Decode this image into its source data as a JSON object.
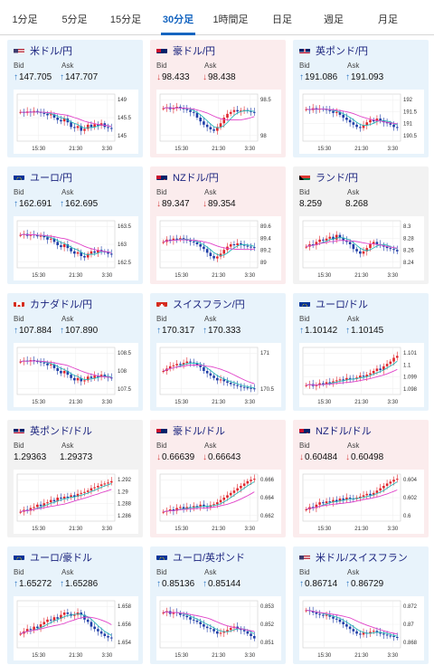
{
  "tabs": [
    {
      "label": "1分足"
    },
    {
      "label": "5分足"
    },
    {
      "label": "15分足"
    },
    {
      "label": "30分足"
    },
    {
      "label": "1時間足"
    },
    {
      "label": "日足"
    },
    {
      "label": "週足"
    },
    {
      "label": "月足"
    }
  ],
  "active_tab": 3,
  "colors": {
    "up": "#e8f3fb",
    "down": "#fbeced",
    "neutral": "#f2f2f2",
    "candle_up": "#e0262d",
    "candle_down": "#1f3ea8",
    "ma_pink": "#e040c8",
    "ma_teal": "#2ab7b7",
    "arrow_up": "#2f78c4",
    "arrow_down": "#d64545"
  },
  "labels": {
    "bid": "Bid",
    "ask": "Ask"
  },
  "cards": [
    {
      "title": "米ドル/円",
      "flag": "us",
      "dir": "up",
      "bid": "147.705",
      "ask": "147.707",
      "yticks": [
        "149",
        "145.5",
        "145"
      ],
      "xticks": [
        "15:30",
        "21:30",
        "3:30"
      ],
      "ohlc": [
        0.62,
        0.6,
        0.63,
        0.61,
        0.64,
        0.62,
        0.6,
        0.58,
        0.55,
        0.57,
        0.5,
        0.45,
        0.42,
        0.48,
        0.4,
        0.3,
        0.28,
        0.32,
        0.22,
        0.26,
        0.35,
        0.3,
        0.36,
        0.33,
        0.38,
        0.3,
        0.28,
        0.26
      ]
    },
    {
      "title": "豪ドル/円",
      "flag": "au",
      "dir": "down",
      "bid": "98.433",
      "ask": "98.438",
      "yticks": [
        "98.5",
        "98"
      ],
      "xticks": [
        "15:30",
        "21:30",
        "3:30"
      ],
      "ohlc": [
        0.7,
        0.72,
        0.68,
        0.71,
        0.73,
        0.7,
        0.68,
        0.66,
        0.62,
        0.6,
        0.5,
        0.42,
        0.35,
        0.3,
        0.25,
        0.22,
        0.3,
        0.38,
        0.5,
        0.58,
        0.62,
        0.66,
        0.63,
        0.65,
        0.66,
        0.64,
        0.62,
        0.6
      ]
    },
    {
      "title": "英ポンド/円",
      "flag": "uk",
      "dir": "up",
      "bid": "191.086",
      "ask": "191.093",
      "yticks": [
        "192",
        "191.5",
        "191",
        "190.5"
      ],
      "xticks": [
        "15:30",
        "21:30",
        "3:30"
      ],
      "ohlc": [
        0.68,
        0.66,
        0.7,
        0.67,
        0.69,
        0.68,
        0.66,
        0.64,
        0.6,
        0.62,
        0.56,
        0.5,
        0.45,
        0.4,
        0.35,
        0.3,
        0.28,
        0.34,
        0.4,
        0.45,
        0.42,
        0.48,
        0.44,
        0.4,
        0.38,
        0.35,
        0.3,
        0.28
      ]
    },
    {
      "title": "ユーロ/円",
      "flag": "eu",
      "dir": "up",
      "bid": "162.691",
      "ask": "162.695",
      "yticks": [
        "163.5",
        "163",
        "162.5"
      ],
      "xticks": [
        "15:30",
        "21:30",
        "3:30"
      ],
      "ohlc": [
        0.7,
        0.72,
        0.68,
        0.71,
        0.7,
        0.67,
        0.68,
        0.65,
        0.6,
        0.62,
        0.55,
        0.48,
        0.44,
        0.5,
        0.42,
        0.35,
        0.3,
        0.33,
        0.25,
        0.22,
        0.3,
        0.35,
        0.32,
        0.38,
        0.35,
        0.33,
        0.3,
        0.28
      ]
    },
    {
      "title": "NZドル/円",
      "flag": "nz",
      "dir": "down",
      "bid": "89.347",
      "ask": "89.354",
      "yticks": [
        "89.6",
        "89.4",
        "89.2",
        "89"
      ],
      "xticks": [
        "15:30",
        "21:30",
        "3:30"
      ],
      "ohlc": [
        0.55,
        0.6,
        0.58,
        0.62,
        0.6,
        0.63,
        0.6,
        0.58,
        0.56,
        0.54,
        0.5,
        0.45,
        0.4,
        0.32,
        0.25,
        0.2,
        0.24,
        0.3,
        0.38,
        0.45,
        0.5,
        0.48,
        0.52,
        0.5,
        0.47,
        0.45,
        0.44,
        0.42
      ]
    },
    {
      "title": "ランド/円",
      "flag": "za",
      "dir": "neutral",
      "bid": "8.259",
      "ask": "8.268",
      "yticks": [
        "8.3",
        "8.28",
        "8.26",
        "8.24"
      ],
      "xticks": [
        "15:30",
        "21:30",
        "3:30"
      ],
      "ohlc": [
        0.45,
        0.5,
        0.48,
        0.55,
        0.6,
        0.58,
        0.62,
        0.66,
        0.6,
        0.7,
        0.64,
        0.58,
        0.55,
        0.5,
        0.4,
        0.35,
        0.3,
        0.35,
        0.42,
        0.5,
        0.55,
        0.5,
        0.48,
        0.45,
        0.42,
        0.4,
        0.38,
        0.35
      ]
    },
    {
      "title": "カナダドル/円",
      "flag": "ca",
      "dir": "up",
      "bid": "107.884",
      "ask": "107.890",
      "yticks": [
        "108.5",
        "108",
        "107.5"
      ],
      "xticks": [
        "15:30",
        "21:30",
        "3:30"
      ],
      "ohlc": [
        0.7,
        0.72,
        0.7,
        0.73,
        0.71,
        0.7,
        0.68,
        0.66,
        0.62,
        0.64,
        0.56,
        0.5,
        0.45,
        0.5,
        0.42,
        0.35,
        0.3,
        0.35,
        0.28,
        0.3,
        0.38,
        0.35,
        0.4,
        0.37,
        0.42,
        0.38,
        0.36,
        0.35
      ]
    },
    {
      "title": "スイスフラン/円",
      "flag": "ch",
      "dir": "up",
      "bid": "170.317",
      "ask": "170.333",
      "yticks": [
        "171",
        "170.5"
      ],
      "xticks": [
        "15:30",
        "21:30",
        "3:30"
      ],
      "ohlc": [
        0.5,
        0.55,
        0.6,
        0.62,
        0.65,
        0.63,
        0.67,
        0.7,
        0.68,
        0.66,
        0.62,
        0.58,
        0.5,
        0.45,
        0.4,
        0.35,
        0.3,
        0.32,
        0.28,
        0.25,
        0.22,
        0.2,
        0.18,
        0.16,
        0.15,
        0.14,
        0.13,
        0.12
      ]
    },
    {
      "title": "ユーロ/ドル",
      "flag": "eu-us",
      "dir": "up",
      "bid": "1.10142",
      "ask": "1.10145",
      "yticks": [
        "1.101",
        "1.1",
        "1.099",
        "1.098"
      ],
      "xticks": [
        "15:30",
        "21:30",
        "3:30"
      ],
      "ohlc": [
        0.2,
        0.22,
        0.18,
        0.2,
        0.24,
        0.22,
        0.26,
        0.25,
        0.28,
        0.3,
        0.32,
        0.3,
        0.35,
        0.34,
        0.33,
        0.36,
        0.4,
        0.38,
        0.42,
        0.45,
        0.5,
        0.55,
        0.52,
        0.6,
        0.65,
        0.7,
        0.78,
        0.82
      ]
    },
    {
      "title": "英ポンド/ドル",
      "flag": "uk-us",
      "dir": "neutral",
      "bid": "1.29363",
      "ask": "1.29373",
      "yticks": [
        "1.292",
        "1.29",
        "1.288",
        "1.286"
      ],
      "xticks": [
        "15:30",
        "21:30",
        "3:30"
      ],
      "ohlc": [
        0.2,
        0.24,
        0.22,
        0.28,
        0.3,
        0.35,
        0.32,
        0.38,
        0.4,
        0.45,
        0.42,
        0.5,
        0.48,
        0.52,
        0.5,
        0.55,
        0.52,
        0.58,
        0.6,
        0.62,
        0.65,
        0.7,
        0.72,
        0.75,
        0.78,
        0.8,
        0.82,
        0.85
      ]
    },
    {
      "title": "豪ドル/ドル",
      "flag": "au-us",
      "dir": "down",
      "bid": "0.66639",
      "ask": "0.66643",
      "yticks": [
        "0.666",
        "0.664",
        "0.662"
      ],
      "xticks": [
        "15:30",
        "21:30",
        "3:30"
      ],
      "ohlc": [
        0.2,
        0.22,
        0.25,
        0.22,
        0.28,
        0.3,
        0.26,
        0.3,
        0.28,
        0.32,
        0.3,
        0.35,
        0.32,
        0.3,
        0.34,
        0.36,
        0.4,
        0.45,
        0.5,
        0.55,
        0.6,
        0.65,
        0.7,
        0.75,
        0.8,
        0.85,
        0.88,
        0.9
      ]
    },
    {
      "title": "NZドル/ドル",
      "flag": "nz-us",
      "dir": "down",
      "bid": "0.60484",
      "ask": "0.60498",
      "yticks": [
        "0.604",
        "0.602",
        "0.6"
      ],
      "xticks": [
        "15:30",
        "21:30",
        "3:30"
      ],
      "ohlc": [
        0.25,
        0.3,
        0.28,
        0.35,
        0.4,
        0.38,
        0.42,
        0.4,
        0.45,
        0.42,
        0.48,
        0.45,
        0.5,
        0.48,
        0.47,
        0.5,
        0.52,
        0.55,
        0.58,
        0.55,
        0.6,
        0.65,
        0.7,
        0.75,
        0.8,
        0.84,
        0.88,
        0.9
      ]
    },
    {
      "title": "ユーロ/豪ドル",
      "flag": "eu-au",
      "dir": "up",
      "bid": "1.65272",
      "ask": "1.65286",
      "yticks": [
        "1.658",
        "1.656",
        "1.654"
      ],
      "xticks": [
        "15:30",
        "21:30",
        "3:30"
      ],
      "ohlc": [
        0.3,
        0.35,
        0.4,
        0.38,
        0.45,
        0.42,
        0.5,
        0.55,
        0.6,
        0.58,
        0.65,
        0.62,
        0.7,
        0.75,
        0.72,
        0.68,
        0.7,
        0.75,
        0.7,
        0.6,
        0.55,
        0.45,
        0.4,
        0.35,
        0.3,
        0.25,
        0.22,
        0.2
      ]
    },
    {
      "title": "ユーロ/英ポンド",
      "flag": "eu-uk",
      "dir": "up",
      "bid": "0.85136",
      "ask": "0.85144",
      "yticks": [
        "0.853",
        "0.852",
        "0.851"
      ],
      "xticks": [
        "15:30",
        "21:30",
        "3:30"
      ],
      "ohlc": [
        0.75,
        0.78,
        0.72,
        0.76,
        0.74,
        0.7,
        0.68,
        0.65,
        0.6,
        0.58,
        0.55,
        0.5,
        0.45,
        0.42,
        0.4,
        0.35,
        0.3,
        0.32,
        0.35,
        0.38,
        0.42,
        0.45,
        0.4,
        0.38,
        0.35,
        0.3,
        0.25,
        0.2
      ]
    },
    {
      "title": "米ドル/スイスフラン",
      "flag": "us-ch",
      "dir": "up",
      "bid": "0.86714",
      "ask": "0.86729",
      "yticks": [
        "0.872",
        "0.87",
        "0.868"
      ],
      "xticks": [
        "15:30",
        "21:30",
        "3:30"
      ],
      "ohlc": [
        0.8,
        0.78,
        0.75,
        0.72,
        0.7,
        0.68,
        0.7,
        0.66,
        0.62,
        0.6,
        0.55,
        0.5,
        0.45,
        0.4,
        0.35,
        0.3,
        0.28,
        0.32,
        0.3,
        0.34,
        0.36,
        0.33,
        0.3,
        0.28,
        0.26,
        0.25,
        0.23,
        0.22
      ]
    }
  ]
}
